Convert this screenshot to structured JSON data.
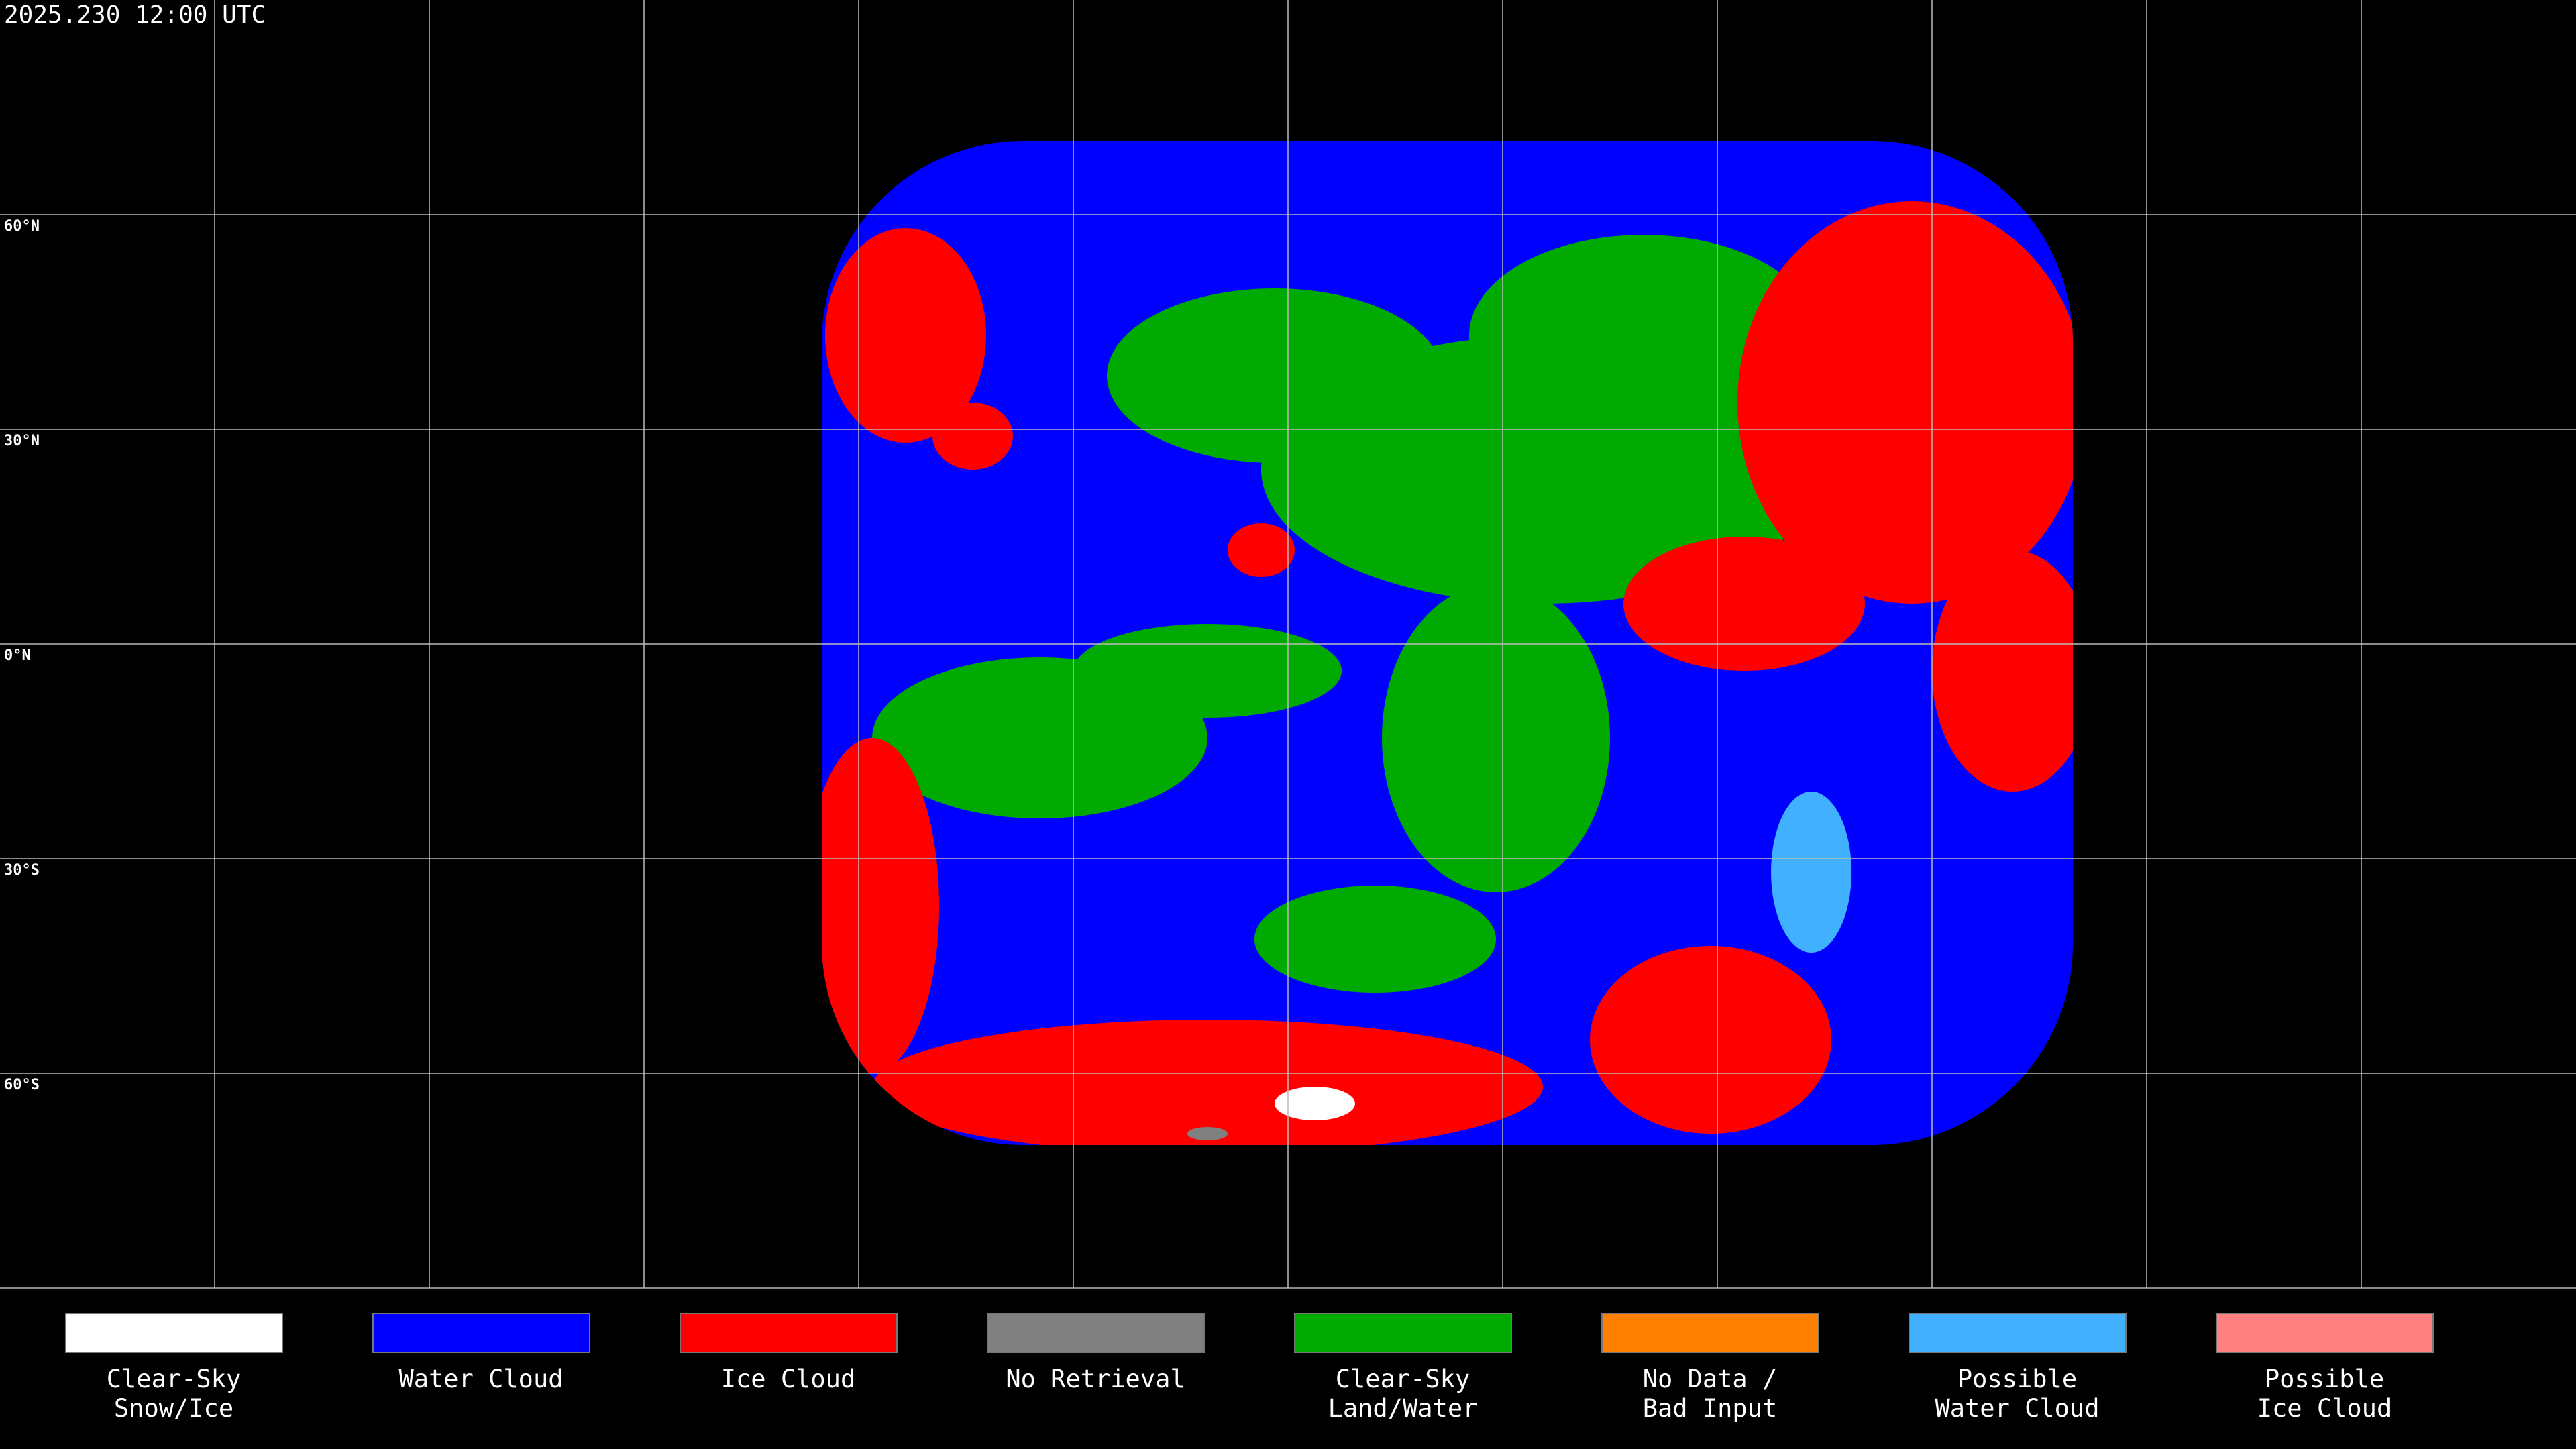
{
  "header": {
    "title": "2025.230 12:00 UTC"
  },
  "lat_lines": [
    {
      "value": 60,
      "label": "60°N"
    },
    {
      "value": 30,
      "label": "30°N"
    },
    {
      "value": 0,
      "label": "0°N"
    },
    {
      "value": -30,
      "label": "30°S"
    },
    {
      "value": -60,
      "label": "60°S"
    }
  ],
  "legend": [
    {
      "lines": [
        "Clear-Sky",
        "Snow/Ice"
      ],
      "color": "#ffffff"
    },
    {
      "lines": [
        "Water Cloud"
      ],
      "color": "#0000ff"
    },
    {
      "lines": [
        "Ice Cloud"
      ],
      "color": "#ff0000"
    },
    {
      "lines": [
        "No Retrieval"
      ],
      "color": "#808080"
    },
    {
      "lines": [
        "Clear-Sky",
        "Land/Water"
      ],
      "color": "#00aa00"
    },
    {
      "lines": [
        "No Data /",
        "Bad Input"
      ],
      "color": "#ff8000"
    },
    {
      "lines": [
        "Possible",
        "Water Cloud"
      ],
      "color": "#40b0ff"
    },
    {
      "lines": [
        "Possible",
        "Ice Cloud"
      ],
      "color": "#ff8080"
    }
  ]
}
